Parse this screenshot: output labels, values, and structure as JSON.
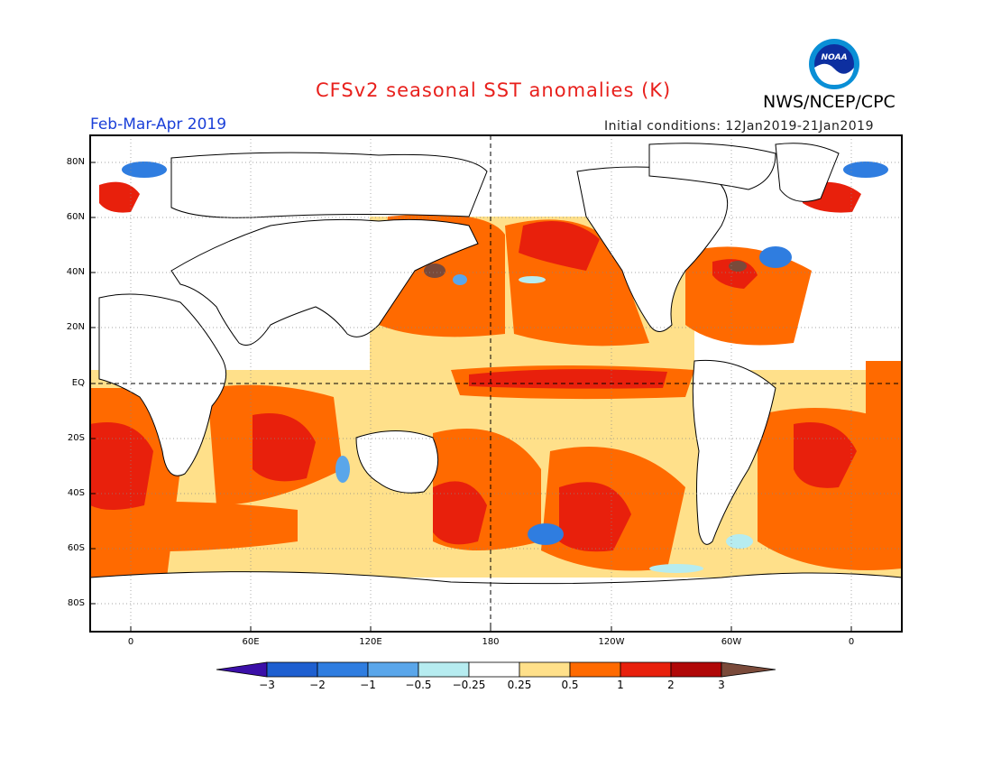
{
  "header": {
    "title": "CFSv2 seasonal SST anomalies (K)",
    "agency": "NWS/NCEP/CPC",
    "period": "Feb-Mar-Apr 2019",
    "initial_conditions": "Initial conditions: 12Jan2019-21Jan2019",
    "logo_text": "NOAA"
  },
  "map": {
    "lat_labels": [
      "80N",
      "60N",
      "40N",
      "20N",
      "EQ",
      "20S",
      "40S",
      "60S",
      "80S"
    ],
    "lon_labels": [
      "0",
      "60E",
      "120E",
      "180",
      "120W",
      "60W",
      "0"
    ]
  },
  "colorbar": {
    "labels": [
      "-3",
      "-2",
      "-1",
      "-0.5",
      "-0.25",
      "0.25",
      "0.5",
      "1",
      "2",
      "3"
    ],
    "colors": [
      "#3b0fa8",
      "#1e5fd0",
      "#2f7de0",
      "#5aa6ea",
      "#b6ecf0",
      "#ffffff",
      "#ffe08a",
      "#ff6a00",
      "#e8200c",
      "#b00808",
      "#7a4a3a"
    ]
  }
}
